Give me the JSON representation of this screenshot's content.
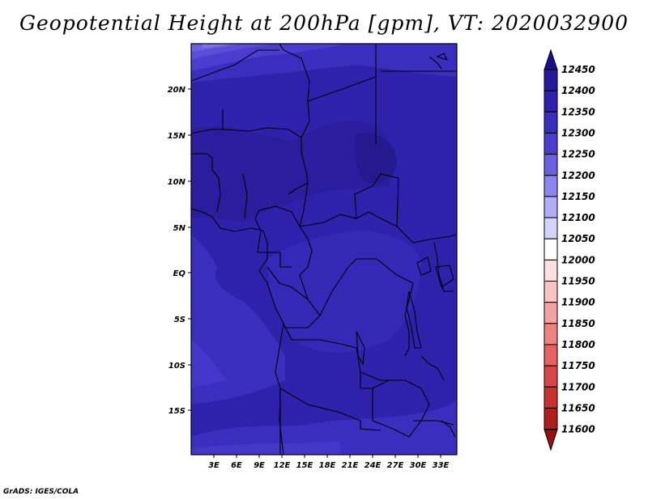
{
  "title": "Geopotential Height at 200hPa [gpm], VT: 2020032900",
  "credit": "GrADS: IGES/COLA",
  "lat_labels": [
    "20N",
    "15N",
    "10N",
    "5N",
    "EQ",
    "5S",
    "10S",
    "15S"
  ],
  "lon_labels": [
    "3E",
    "6E",
    "9E",
    "12E",
    "15E",
    "18E",
    "21E",
    "24E",
    "27E",
    "30E",
    "33E"
  ],
  "colorbar": {
    "labels": [
      "12450",
      "12400",
      "12350",
      "12300",
      "12250",
      "12200",
      "12150",
      "12100",
      "12050",
      "12000",
      "11950",
      "11900",
      "11850",
      "11800",
      "11750",
      "11700",
      "11650",
      "11600"
    ],
    "colors": [
      "#1c0f8c",
      "#261a9c",
      "#2e22ad",
      "#3a2ebe",
      "#4a3dd0",
      "#6c5fe0",
      "#8f84ee",
      "#b3acf6",
      "#d6d3fb",
      "#ffffff",
      "#fde0e0",
      "#f9c4c4",
      "#f3a3a3",
      "#ec8383",
      "#e36262",
      "#d84646",
      "#c93131",
      "#b11c1c",
      "#9a1010"
    ]
  }
}
